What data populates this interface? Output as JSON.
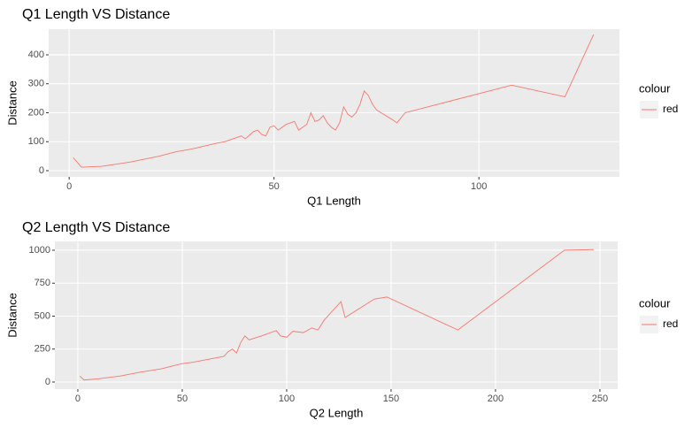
{
  "chart_data": [
    {
      "type": "line",
      "title": "Q1 Length VS Distance",
      "x_label": "Q1 Length",
      "y_label": "Distance",
      "legend_title": "colour",
      "grid": true,
      "x": [
        1,
        3,
        8,
        15,
        22,
        26,
        30,
        33,
        36,
        38,
        40,
        41,
        42,
        43,
        45,
        46,
        47,
        48,
        49,
        50,
        51,
        52,
        53,
        54,
        55,
        56,
        57,
        58,
        59,
        60,
        61,
        62,
        63,
        64,
        65,
        66,
        67,
        68,
        69,
        70,
        71,
        72,
        73,
        74,
        75,
        79,
        80,
        82,
        108,
        121,
        128
      ],
      "series": [
        {
          "name": "red",
          "color": "#F8766D",
          "values": [
            45,
            12,
            15,
            30,
            50,
            65,
            75,
            85,
            95,
            100,
            110,
            115,
            120,
            110,
            135,
            140,
            125,
            120,
            150,
            155,
            140,
            150,
            160,
            165,
            170,
            140,
            150,
            160,
            200,
            170,
            175,
            190,
            165,
            150,
            140,
            165,
            220,
            195,
            185,
            200,
            230,
            275,
            260,
            230,
            210,
            175,
            165,
            200,
            295,
            255,
            470
          ]
        }
      ],
      "xlim": [
        -5,
        134.3
      ],
      "xticks": [
        0,
        50,
        100
      ],
      "ylim": [
        -21.4,
        488.5
      ],
      "yticks": [
        0,
        100,
        200,
        300,
        400
      ]
    },
    {
      "type": "line",
      "title": "Q2 Length VS Distance",
      "x_label": "Q2 Length",
      "y_label": "Distance",
      "legend_title": "colour",
      "grid": true,
      "x": [
        1,
        3,
        10,
        20,
        30,
        40,
        45,
        50,
        55,
        60,
        65,
        70,
        72,
        74,
        76,
        78,
        80,
        82,
        84,
        88,
        95,
        97,
        100,
        103,
        108,
        112,
        115,
        118,
        126,
        128,
        142,
        148,
        182,
        233,
        247
      ],
      "series": [
        {
          "name": "red",
          "color": "#F8766D",
          "values": [
            45,
            15,
            25,
            45,
            75,
            100,
            120,
            140,
            150,
            165,
            180,
            195,
            230,
            250,
            220,
            300,
            350,
            320,
            330,
            350,
            390,
            350,
            340,
            385,
            375,
            410,
            395,
            470,
            610,
            490,
            630,
            645,
            395,
            1000,
            1005
          ]
        }
      ],
      "xlim": [
        -11,
        258.5
      ],
      "xticks": [
        0,
        50,
        100,
        150,
        200,
        250
      ],
      "ylim": [
        -53.7,
        1067
      ],
      "yticks": [
        0,
        250,
        500,
        750,
        1000
      ]
    }
  ]
}
